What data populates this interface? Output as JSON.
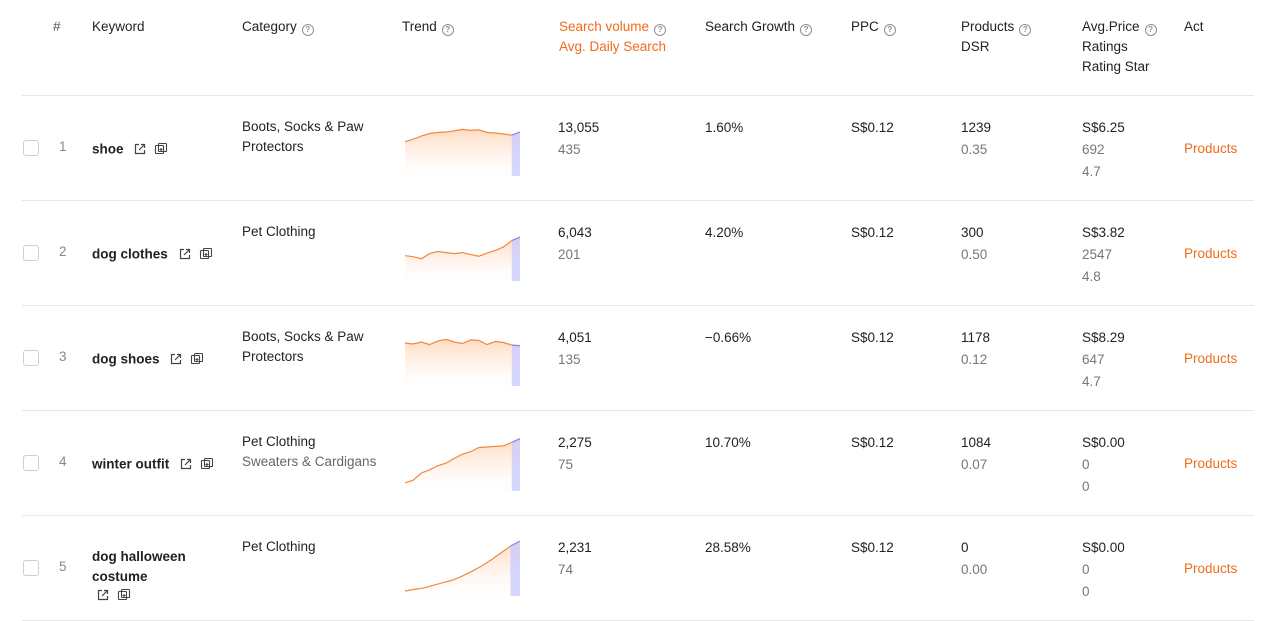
{
  "header": {
    "index": "#",
    "keyword": "Keyword",
    "category": "Category",
    "trend": "Trend",
    "search_volume": "Search volume",
    "avg_daily_search": "Avg. Daily Search",
    "search_growth": "Search Growth",
    "ppc": "PPC",
    "products": "Products",
    "dsr": "DSR",
    "avg_price": "Avg.Price",
    "ratings": "Ratings",
    "rating_star": "Rating Star",
    "act": "Act",
    "help_glyph": "?"
  },
  "rows": [
    {
      "index": "1",
      "keyword": "shoe",
      "category": "Boots, Socks & Paw Protectors",
      "subcategory": "",
      "search_volume": "13,055",
      "avg_daily_search": "435",
      "search_growth": "1.60%",
      "ppc": "S$0.12",
      "products": "1239",
      "dsr": "0.35",
      "avg_price": "S$6.25",
      "ratings": "692",
      "rating_star": "4.7",
      "action": "Products",
      "trend": [
        0.58,
        0.63,
        0.69,
        0.74,
        0.76,
        0.77,
        0.79,
        0.82,
        0.8,
        0.81,
        0.76,
        0.75,
        0.73,
        0.71,
        0.77
      ]
    },
    {
      "index": "2",
      "keyword": "dog clothes",
      "category": "Pet Clothing",
      "subcategory": "",
      "search_volume": "6,043",
      "avg_daily_search": "201",
      "search_growth": "4.20%",
      "ppc": "S$0.12",
      "products": "300",
      "dsr": "0.50",
      "avg_price": "S$3.82",
      "ratings": "2547",
      "rating_star": "4.8",
      "action": "Products",
      "trend": [
        0.41,
        0.39,
        0.35,
        0.45,
        0.49,
        0.47,
        0.45,
        0.47,
        0.43,
        0.4,
        0.46,
        0.51,
        0.58,
        0.7,
        0.77
      ]
    },
    {
      "index": "3",
      "keyword": "dog shoes",
      "category": "Boots, Socks & Paw Protectors",
      "subcategory": "",
      "search_volume": "4,051",
      "avg_daily_search": "135",
      "search_growth": "−0.66%",
      "ppc": "S$0.12",
      "products": "1178",
      "dsr": "0.12",
      "avg_price": "S$8.29",
      "ratings": "647",
      "rating_star": "4.7",
      "action": "Products",
      "trend": [
        0.75,
        0.73,
        0.77,
        0.72,
        0.79,
        0.82,
        0.77,
        0.74,
        0.81,
        0.8,
        0.72,
        0.78,
        0.76,
        0.71,
        0.7
      ]
    },
    {
      "index": "4",
      "keyword": "winter outfit",
      "category": "Pet Clothing",
      "subcategory": "Sweaters & Cardigans",
      "search_volume": "2,275",
      "avg_daily_search": "75",
      "search_growth": "10.70%",
      "ppc": "S$0.12",
      "products": "1084",
      "dsr": "0.07",
      "avg_price": "S$0.00",
      "ratings": "0",
      "rating_star": "0",
      "action": "Products",
      "trend": [
        0.08,
        0.13,
        0.27,
        0.33,
        0.41,
        0.46,
        0.55,
        0.63,
        0.68,
        0.76,
        0.77,
        0.78,
        0.79,
        0.86,
        0.93
      ]
    },
    {
      "index": "5",
      "keyword": "dog halloween costume",
      "category": "Pet Clothing",
      "subcategory": "",
      "search_volume": "2,231",
      "avg_daily_search": "74",
      "search_growth": "28.58%",
      "ppc": "S$0.12",
      "products": "0",
      "dsr": "0.00",
      "avg_price": "S$0.00",
      "ratings": "0",
      "rating_star": "0",
      "action": "Products",
      "trend": [
        0.02,
        0.05,
        0.08,
        0.13,
        0.18,
        0.23,
        0.31,
        0.4,
        0.5,
        0.62,
        0.75,
        0.88,
        0.98
      ]
    }
  ]
}
